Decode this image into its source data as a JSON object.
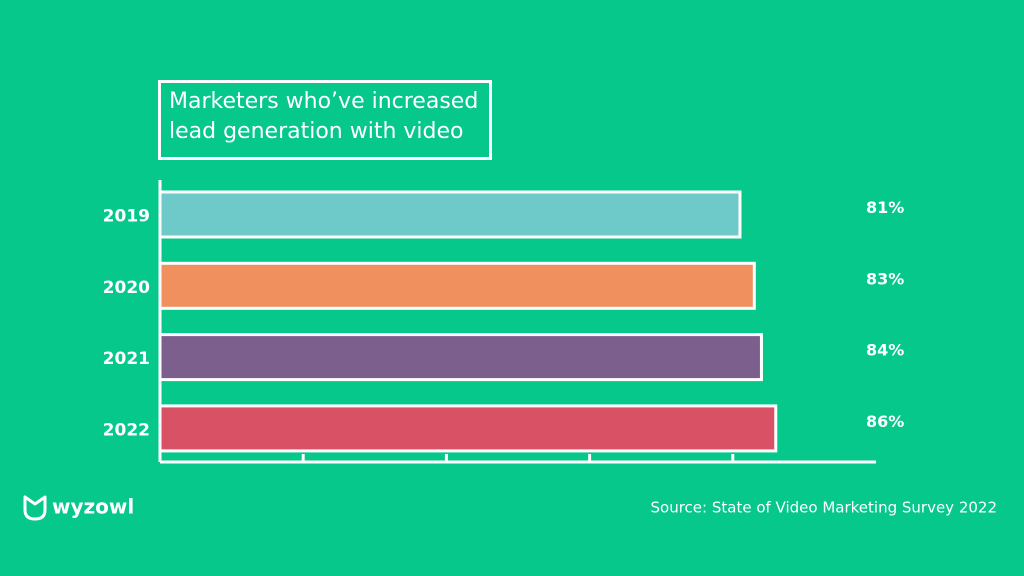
{
  "chart_data": {
    "type": "hbar",
    "title": "Marketers who’ve increased lead generation with video",
    "categories": [
      "2019",
      "2020",
      "2021",
      "2022"
    ],
    "values": [
      81,
      83,
      84,
      86
    ],
    "value_labels": [
      "81%",
      "83%",
      "84%",
      "86%"
    ],
    "colors": [
      "#6ecac9",
      "#f0905e",
      "#7d5f8e",
      "#d95164"
    ],
    "xlim": [
      0,
      100
    ],
    "xticks": [
      20,
      40,
      60,
      80
    ],
    "source": "Source: State of Video Marketing Survey 2022",
    "logo": "wyzowl"
  }
}
